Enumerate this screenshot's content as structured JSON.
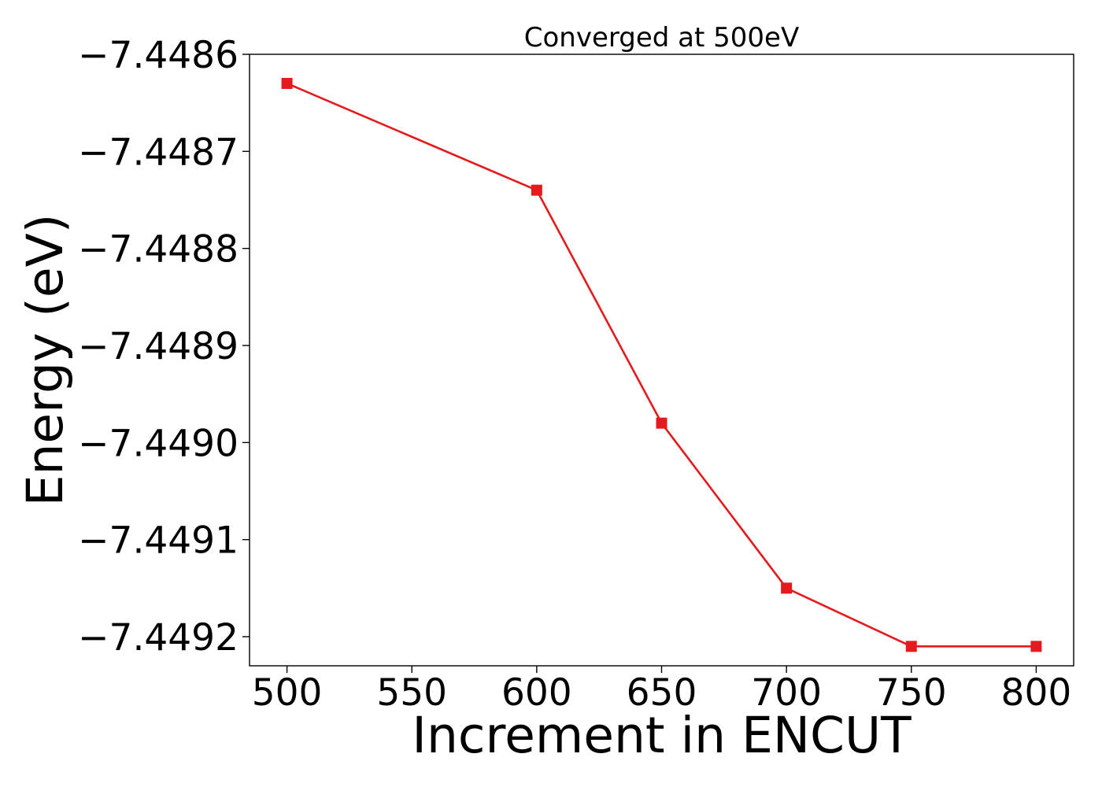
{
  "chart_data": {
    "type": "line",
    "title": "Converged at 500eV",
    "xlabel": "Increment in ENCUT",
    "ylabel": "Energy (eV)",
    "x": [
      500,
      600,
      650,
      700,
      750,
      800
    ],
    "series": [
      {
        "values": [
          -7.44863,
          -7.44874,
          -7.44898,
          -7.44915,
          -7.44921,
          -7.44921
        ],
        "color": "#e41a1c",
        "marker": "square"
      }
    ],
    "xlim": [
      485,
      815
    ],
    "ylim": [
      -7.44923,
      -7.4486
    ],
    "xticks": [
      500,
      550,
      600,
      650,
      700,
      750,
      800
    ],
    "xtick_labels": [
      "500",
      "550",
      "600",
      "650",
      "700",
      "750",
      "800"
    ],
    "yticks": [
      -7.4486,
      -7.4487,
      -7.4488,
      -7.4489,
      -7.449,
      -7.4491,
      -7.4492
    ],
    "ytick_labels": [
      "−7.4486",
      "−7.4487",
      "−7.4488",
      "−7.4489",
      "−7.4490",
      "−7.4491",
      "−7.4492"
    ],
    "grid": false,
    "legend": "none"
  }
}
